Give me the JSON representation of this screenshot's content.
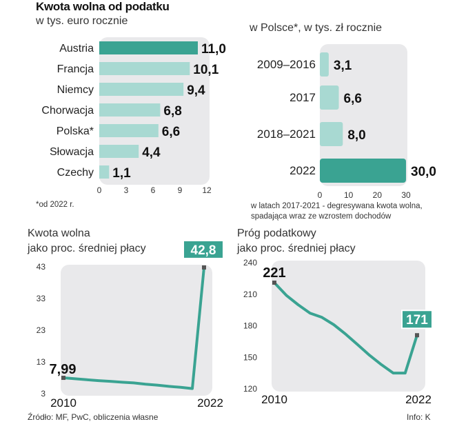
{
  "colors": {
    "accent": "#3aa392",
    "light": "#a8d9d2",
    "panel": "#e9e9eb",
    "line": "#3aa392"
  },
  "chart_data": [
    {
      "type": "bar",
      "title": "Kwota wolna od podatku",
      "subtitle": "w tys. euro rocznie",
      "categories": [
        "Austria",
        "Francja",
        "Niemcy",
        "Chorwacja",
        "Polska*",
        "Słowacja",
        "Czechy"
      ],
      "values": [
        11.0,
        10.1,
        9.4,
        6.8,
        6.6,
        4.4,
        1.1
      ],
      "value_labels": [
        "11,0",
        "10,1",
        "9,4",
        "6,8",
        "6,6",
        "4,4",
        "1,1"
      ],
      "highlight_index": 0,
      "xlim": [
        0,
        12
      ],
      "ticks": [
        0,
        3,
        6,
        9,
        12
      ],
      "tick_labels": [
        "0",
        "3",
        "6",
        "9",
        "12"
      ],
      "footnote": "*od 2022 r."
    },
    {
      "type": "bar",
      "subtitle": "w Polsce*, w tys. zł rocznie",
      "categories": [
        "2009–2016",
        "2017",
        "2018–2021",
        "2022"
      ],
      "values": [
        3.1,
        6.6,
        8.0,
        30.0
      ],
      "value_labels": [
        "3,1",
        "6,6",
        "8,0",
        "30,0"
      ],
      "highlight_index": 3,
      "xlim": [
        0,
        30
      ],
      "ticks": [
        0,
        10,
        20,
        30
      ],
      "tick_labels": [
        "0",
        "10",
        "20",
        "30"
      ],
      "footnote": "w latach 2017-2021 - degresywana kwota wolna, spadająca wraz ze wzrostem dochodów"
    },
    {
      "type": "line",
      "title": "Kwota wolna jako proc. średniej płacy",
      "title_lines": [
        "Kwota wolna",
        "jako proc. średniej płacy"
      ],
      "x": [
        2010,
        2011,
        2012,
        2013,
        2014,
        2015,
        2016,
        2017,
        2018,
        2019,
        2020,
        2021,
        2022
      ],
      "values": [
        7.99,
        7.7,
        7.4,
        7.1,
        6.9,
        6.6,
        6.4,
        6.0,
        5.7,
        5.3,
        5.0,
        4.6,
        42.8
      ],
      "ylim": [
        3,
        43
      ],
      "yticks": [
        3,
        13,
        23,
        33,
        43
      ],
      "ytick_labels": [
        "3",
        "13",
        "23",
        "33",
        "43"
      ],
      "xtick_labels": [
        "2010",
        "2022"
      ],
      "start_label": "7,99",
      "end_label": "42,8"
    },
    {
      "type": "line",
      "title": "Próg podatkowy jako proc. średniej płacy",
      "title_lines": [
        "Próg podatkowy",
        "jako proc. średniej płacy"
      ],
      "x": [
        2010,
        2011,
        2012,
        2013,
        2014,
        2015,
        2016,
        2017,
        2018,
        2019,
        2020,
        2021,
        2022
      ],
      "values": [
        221,
        209,
        200,
        192,
        188,
        181,
        172,
        162,
        152,
        143,
        135,
        135,
        171
      ],
      "ylim": [
        120,
        240
      ],
      "yticks": [
        120,
        150,
        180,
        210,
        240
      ],
      "ytick_labels": [
        "120",
        "150",
        "180",
        "210",
        "240"
      ],
      "xtick_labels": [
        "2010",
        "2022"
      ],
      "start_label": "221",
      "end_label": "171"
    }
  ],
  "footer": {
    "source": "Źródło: MF, PwC, obliczenia własne",
    "credit": "Info: K"
  }
}
